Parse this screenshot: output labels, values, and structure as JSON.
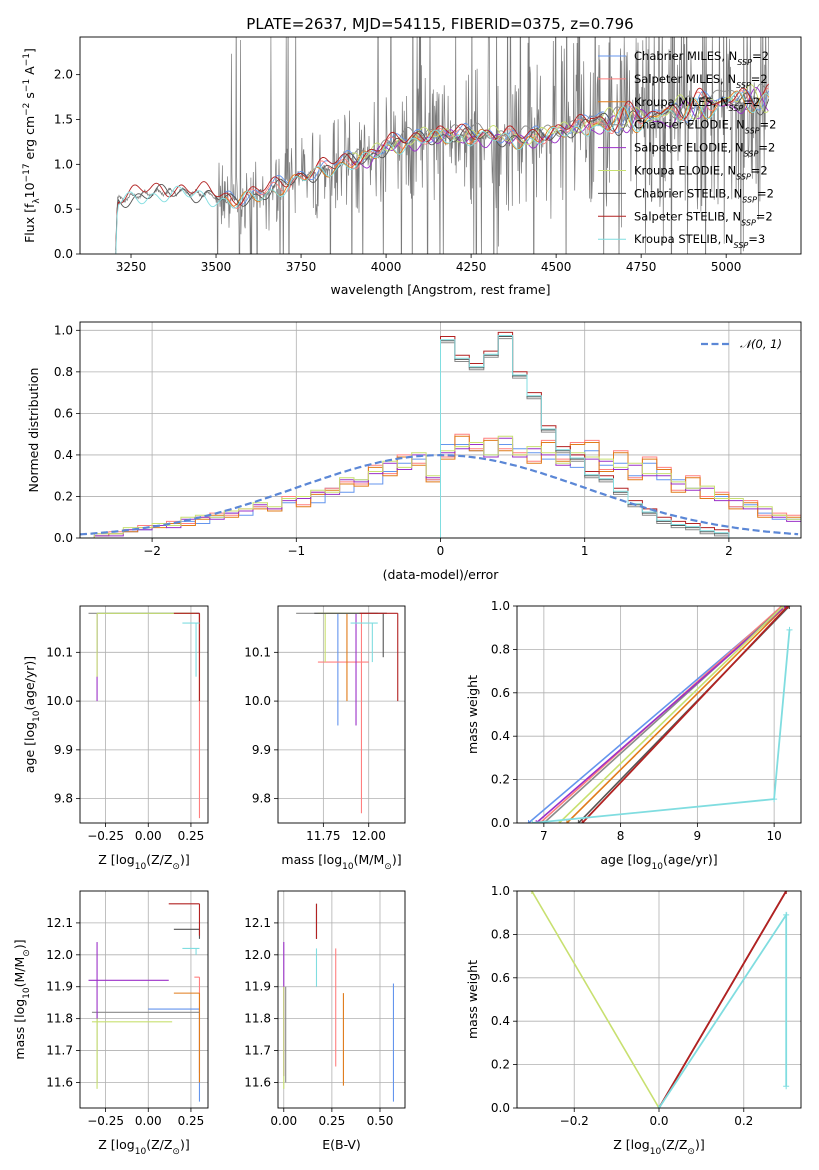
{
  "figure_title": "PLATE=2637, MJD=54115, FIBERID=0375, z=0.796",
  "colors": {
    "chabrier_miles": "#6495ED",
    "salpeter_miles": "#FF7F7F",
    "kroupa_miles": "#E07B1A",
    "chabrier_elodie": "#8A8A8A",
    "salpeter_elodie": "#9B30C8",
    "kroupa_elodie": "#C8E070",
    "chabrier_stelib": "#555555",
    "salpeter_stelib": "#B22222",
    "kroupa_stelib": "#80DDE0",
    "gauss": "#5B87D6",
    "data_spectrum": "#7a7a7a"
  },
  "chart_data": [
    {
      "id": "spectrum",
      "type": "line",
      "title": "PLATE=2637, MJD=54115, FIBERID=0375, z=0.796",
      "xlabel": "wavelength [Angstrom, rest frame]",
      "ylabel": "Flux [f$_\\lambda$ 10$^{-17}$ erg cm$^{-2}$ s$^{-1}$ A$^{-1}$]",
      "ylabel_parts": [
        "Flux [f",
        "λ",
        "10",
        "−17",
        " erg cm",
        "−2",
        " s",
        "−1",
        " A",
        "−1",
        "]"
      ],
      "xlim": [
        3100,
        5220
      ],
      "ylim": [
        0,
        2.42
      ],
      "xticks": [
        3250,
        3500,
        3750,
        4000,
        4250,
        4500,
        4750,
        5000
      ],
      "yticks": [
        0.0,
        0.5,
        1.0,
        1.5,
        2.0
      ],
      "ytick_labels": [
        "0.0",
        "0.5",
        "1.0",
        "1.5",
        "2.0"
      ],
      "grid": false,
      "legend_position": "upper right",
      "series": [
        {
          "name": "Chabrier MILES, N_SSP=2",
          "label_base": "Chabrier MILES, N",
          "label_sub": "SSP",
          "label_tail": "=2",
          "color_key": "chabrier_miles"
        },
        {
          "name": "Salpeter MILES, N_SSP=2",
          "label_base": "Salpeter MILES, N",
          "label_sub": "SSP",
          "label_tail": "=2",
          "color_key": "salpeter_miles"
        },
        {
          "name": "Kroupa MILES, N_SSP=2",
          "label_base": "Kroupa MILES, N",
          "label_sub": "SSP",
          "label_tail": "=2",
          "color_key": "kroupa_miles"
        },
        {
          "name": "Chabrier ELODIE, N_SSP=2",
          "label_base": "Chabrier ELODIE, N",
          "label_sub": "SSP",
          "label_tail": "=2",
          "color_key": "chabrier_elodie"
        },
        {
          "name": "Salpeter ELODIE, N_SSP=2",
          "label_base": "Salpeter ELODIE, N",
          "label_sub": "SSP",
          "label_tail": "=2",
          "color_key": "salpeter_elodie"
        },
        {
          "name": "Kroupa ELODIE, N_SSP=2",
          "label_base": "Kroupa ELODIE, N",
          "label_sub": "SSP",
          "label_tail": "=2",
          "color_key": "kroupa_elodie"
        },
        {
          "name": "Chabrier STELIB, N_SSP=2",
          "label_base": "Chabrier STELIB, N",
          "label_sub": "SSP",
          "label_tail": "=2",
          "color_key": "chabrier_stelib"
        },
        {
          "name": "Salpeter STELIB, N_SSP=2",
          "label_base": "Salpeter STELIB, N",
          "label_sub": "SSP",
          "label_tail": "=2",
          "color_key": "salpeter_stelib"
        },
        {
          "name": "Kroupa STELIB, N_SSP=3",
          "label_base": "Kroupa STELIB, N",
          "label_sub": "SSP",
          "label_tail": "=3",
          "color_key": "kroupa_stelib"
        }
      ],
      "model_range": {
        "miles": [
          3525,
          5125
        ],
        "elodie": [
          3900,
          5125
        ],
        "stelib": [
          3205,
          5125
        ]
      },
      "continuum_knots": [
        [
          3205,
          0.0
        ],
        [
          3210,
          0.6
        ],
        [
          3300,
          0.68
        ],
        [
          3400,
          0.7
        ],
        [
          3500,
          0.65
        ],
        [
          3550,
          0.58
        ],
        [
          3650,
          0.7
        ],
        [
          3750,
          0.85
        ],
        [
          3850,
          1.0
        ],
        [
          3950,
          1.08
        ],
        [
          4000,
          1.2
        ],
        [
          4100,
          1.3
        ],
        [
          4200,
          1.33
        ],
        [
          4300,
          1.32
        ],
        [
          4400,
          1.28
        ],
        [
          4500,
          1.35
        ],
        [
          4600,
          1.45
        ],
        [
          4700,
          1.5
        ],
        [
          4800,
          1.55
        ],
        [
          4900,
          1.62
        ],
        [
          5000,
          1.72
        ],
        [
          5125,
          1.72
        ]
      ],
      "data_range": [
        3205,
        5125
      ],
      "noise_start": 3500
    },
    {
      "id": "residuals",
      "type": "step",
      "xlabel": "(data-model)/error",
      "ylabel": "Normed distribution",
      "xlim": [
        -2.5,
        2.5
      ],
      "ylim": [
        0,
        1.04
      ],
      "xticks": [
        -2,
        -1,
        0,
        1,
        2
      ],
      "xtick_labels": [
        "−2",
        "−1",
        "0",
        "1",
        "2"
      ],
      "yticks": [
        0.0,
        0.2,
        0.4,
        0.6,
        0.8,
        1.0
      ],
      "ytick_labels": [
        "0.0",
        "0.2",
        "0.4",
        "0.6",
        "0.8",
        "1.0"
      ],
      "grid": true,
      "legend_position": "upper right",
      "legend_label": "𝒩(0, 1)",
      "bin_edges": [
        -2.5,
        -2.4,
        -2.3,
        -2.2,
        -2.1,
        -2.0,
        -1.9,
        -1.8,
        -1.7,
        -1.6,
        -1.5,
        -1.4,
        -1.3,
        -1.2,
        -1.1,
        -1.0,
        -0.9,
        -0.8,
        -0.7,
        -0.6,
        -0.5,
        -0.4,
        -0.3,
        -0.2,
        -0.1,
        0.0,
        0.1,
        0.2,
        0.3,
        0.4,
        0.5,
        0.6,
        0.7,
        0.8,
        0.9,
        1.0,
        1.1,
        1.2,
        1.3,
        1.4,
        1.5,
        1.6,
        1.7,
        1.8,
        1.9,
        2.0,
        2.1,
        2.2,
        2.3,
        2.4,
        2.5
      ],
      "histograms": {
        "narrow": [
          0,
          0,
          0,
          0,
          0,
          0,
          0,
          0,
          0,
          0,
          0,
          0,
          0,
          0,
          0,
          0,
          0,
          0,
          0,
          0,
          0,
          0,
          0,
          0,
          0,
          0.95,
          0.86,
          0.82,
          0.88,
          0.97,
          0.78,
          0.68,
          0.52,
          0.42,
          0.38,
          0.3,
          0.28,
          0.22,
          0.16,
          0.12,
          0.08,
          0.06,
          0.05,
          0.03,
          0.02,
          0.0,
          0.0,
          0.0,
          0.0,
          0.0
        ],
        "wide_a": [
          0.0,
          0.01,
          0.02,
          0.03,
          0.04,
          0.06,
          0.06,
          0.08,
          0.07,
          0.1,
          0.12,
          0.11,
          0.15,
          0.13,
          0.17,
          0.2,
          0.17,
          0.24,
          0.22,
          0.28,
          0.26,
          0.32,
          0.36,
          0.38,
          0.28,
          0.45,
          0.45,
          0.42,
          0.4,
          0.45,
          0.43,
          0.41,
          0.38,
          0.4,
          0.34,
          0.42,
          0.35,
          0.36,
          0.3,
          0.36,
          0.28,
          0.28,
          0.24,
          0.2,
          0.2,
          0.15,
          0.16,
          0.12,
          0.09,
          0.09
        ],
        "wide_b": [
          0.0,
          0.01,
          0.02,
          0.03,
          0.05,
          0.05,
          0.07,
          0.06,
          0.09,
          0.11,
          0.1,
          0.13,
          0.14,
          0.13,
          0.19,
          0.15,
          0.21,
          0.23,
          0.26,
          0.25,
          0.34,
          0.3,
          0.39,
          0.35,
          0.27,
          0.38,
          0.49,
          0.42,
          0.47,
          0.42,
          0.4,
          0.36,
          0.46,
          0.37,
          0.45,
          0.46,
          0.32,
          0.41,
          0.28,
          0.38,
          0.33,
          0.22,
          0.29,
          0.19,
          0.21,
          0.14,
          0.17,
          0.1,
          0.11,
          0.1
        ],
        "wide_c": [
          0.0,
          0.01,
          0.01,
          0.04,
          0.04,
          0.06,
          0.05,
          0.09,
          0.1,
          0.09,
          0.12,
          0.13,
          0.16,
          0.14,
          0.18,
          0.19,
          0.22,
          0.21,
          0.28,
          0.27,
          0.31,
          0.36,
          0.33,
          0.4,
          0.29,
          0.41,
          0.43,
          0.45,
          0.39,
          0.48,
          0.39,
          0.43,
          0.4,
          0.35,
          0.4,
          0.38,
          0.37,
          0.33,
          0.35,
          0.3,
          0.3,
          0.26,
          0.23,
          0.24,
          0.18,
          0.18,
          0.14,
          0.14,
          0.1,
          0.08
        ]
      }
    },
    {
      "id": "age_vs_Z",
      "type": "errorbar",
      "xlabel": "Z [log10(Z/Z⊙)]",
      "xlabel_parts": [
        "Z [log",
        "10",
        "(Z/Z",
        "⊙",
        ")]"
      ],
      "ylabel": "age [log10(age/yr)]",
      "ylabel_parts": [
        "age  [log",
        "10",
        "(age/yr)]"
      ],
      "xlim": [
        -0.4,
        0.35
      ],
      "ylim": [
        9.75,
        10.195
      ],
      "xticks": [
        -0.25,
        0.0,
        0.25
      ],
      "xtick_labels": [
        "−0.25",
        "0.00",
        "0.25"
      ],
      "yticks": [
        9.8,
        9.9,
        10.0,
        10.1
      ],
      "ytick_labels": [
        "9.8",
        "9.9",
        "10.0",
        "10.1"
      ],
      "grid": true
    },
    {
      "id": "age_vs_mass",
      "type": "errorbar",
      "xlabel": "mass [log10(M/M⊙)]",
      "xlabel_parts": [
        "mass [log",
        "10",
        "(M/M",
        "⊙",
        ")]"
      ],
      "xlim": [
        11.5,
        12.2
      ],
      "ylim": [
        9.75,
        10.195
      ],
      "xticks": [
        11.75,
        12.0
      ],
      "xtick_labels": [
        "11.75",
        "12.00"
      ],
      "yticks": [
        9.8,
        9.9,
        10.0,
        10.1
      ],
      "ytick_labels": [
        "9.8",
        "9.9",
        "10.0",
        "10.1"
      ],
      "grid": true
    },
    {
      "id": "massweight_vs_age",
      "type": "line",
      "xlabel": "age [log10(age/yr)]",
      "xlabel_parts": [
        "age  [log",
        "10",
        "(age/yr)]"
      ],
      "ylabel": "mass weight",
      "xlim": [
        6.65,
        10.35
      ],
      "ylim": [
        0,
        1.0
      ],
      "xticks": [
        7,
        8,
        9,
        10
      ],
      "xtick_labels": [
        "7",
        "8",
        "9",
        "10"
      ],
      "yticks": [
        0.0,
        0.2,
        0.4,
        0.6,
        0.8,
        1.0
      ],
      "ytick_labels": [
        "0.0",
        "0.2",
        "0.4",
        "0.6",
        "0.8",
        "1.0"
      ],
      "grid": true,
      "series": [
        {
          "color_key": "chabrier_miles",
          "x": [
            6.8,
            10.12
          ],
          "y": [
            0.0,
            1.0
          ]
        },
        {
          "color_key": "salpeter_miles",
          "x": [
            6.95,
            10.1
          ],
          "y": [
            0.0,
            1.0
          ]
        },
        {
          "color_key": "kroupa_miles",
          "x": [
            7.3,
            10.15
          ],
          "y": [
            0.0,
            1.0
          ]
        },
        {
          "color_key": "chabrier_elodie",
          "x": [
            7.0,
            10.12
          ],
          "y": [
            0.0,
            1.0
          ]
        },
        {
          "color_key": "salpeter_elodie",
          "x": [
            6.9,
            10.15
          ],
          "y": [
            0.0,
            1.0
          ]
        },
        {
          "color_key": "kroupa_elodie",
          "x": [
            7.2,
            10.12
          ],
          "y": [
            0.0,
            1.0
          ]
        },
        {
          "color_key": "chabrier_stelib",
          "x": [
            7.45,
            10.2
          ],
          "y": [
            0.0,
            1.0
          ]
        },
        {
          "color_key": "salpeter_stelib",
          "x": [
            7.5,
            10.18
          ],
          "y": [
            0.0,
            1.0
          ]
        },
        {
          "color_key": "kroupa_stelib",
          "x": [
            6.85,
            10.0,
            10.2
          ],
          "y": [
            0.0,
            0.11,
            0.89
          ]
        }
      ]
    },
    {
      "id": "mass_vs_Z",
      "type": "errorbar",
      "xlabel": "Z [log10(Z/Z⊙)]",
      "xlabel_parts": [
        "Z [log",
        "10",
        "(Z/Z",
        "⊙",
        ")]"
      ],
      "ylabel": "mass [log10(M/M⊙)]",
      "ylabel_parts": [
        "mass [log",
        "10",
        "(M/M",
        "⊙",
        ")]"
      ],
      "xlim": [
        -0.4,
        0.35
      ],
      "ylim": [
        11.52,
        12.2
      ],
      "xticks": [
        -0.25,
        0.0,
        0.25
      ],
      "xtick_labels": [
        "−0.25",
        "0.00",
        "0.25"
      ],
      "yticks": [
        11.6,
        11.7,
        11.8,
        11.9,
        12.0,
        12.1
      ],
      "ytick_labels": [
        "11.6",
        "11.7",
        "11.8",
        "11.9",
        "12.0",
        "12.1"
      ],
      "grid": true
    },
    {
      "id": "mass_vs_ebv",
      "type": "errorbar",
      "xlabel": "E(B-V)",
      "xlim": [
        -0.03,
        0.63
      ],
      "ylim": [
        11.52,
        12.2
      ],
      "xticks": [
        0.0,
        0.25,
        0.5
      ],
      "xtick_labels": [
        "0.00",
        "0.25",
        "0.50"
      ],
      "yticks": [
        11.6,
        11.7,
        11.8,
        11.9,
        12.0,
        12.1
      ],
      "ytick_labels": [
        "11.6",
        "11.7",
        "11.8",
        "11.9",
        "12.0",
        "12.1"
      ],
      "grid": true
    },
    {
      "id": "massweight_vs_Z",
      "type": "line",
      "xlabel": "Z [log10(Z/Z⊙)]",
      "xlabel_parts": [
        "Z [log",
        "10",
        "(Z/Z",
        "⊙",
        ")]"
      ],
      "ylabel": "mass weight",
      "xlim": [
        -0.335,
        0.335
      ],
      "ylim": [
        0,
        1.0
      ],
      "xticks": [
        -0.2,
        0.0,
        0.2
      ],
      "xtick_labels": [
        "−0.2",
        "0.0",
        "0.2"
      ],
      "yticks": [
        0.0,
        0.2,
        0.4,
        0.6,
        0.8,
        1.0
      ],
      "ytick_labels": [
        "0.0",
        "0.2",
        "0.4",
        "0.6",
        "0.8",
        "1.0"
      ],
      "grid": true,
      "series": [
        {
          "color_key": "kroupa_elodie",
          "x": [
            -0.3,
            0.0
          ],
          "y": [
            1.0,
            0.0
          ]
        },
        {
          "color_key": "salpeter_miles",
          "x": [
            0.0,
            0.3
          ],
          "y": [
            0.0,
            1.0
          ]
        },
        {
          "color_key": "chabrier_stelib",
          "x": [
            0.0,
            0.3
          ],
          "y": [
            0.0,
            1.0
          ]
        },
        {
          "color_key": "salpeter_stelib",
          "x": [
            0.0,
            0.3
          ],
          "y": [
            0.0,
            1.0
          ]
        },
        {
          "color_key": "kroupa_stelib",
          "x": [
            0.0,
            0.3,
            0.3
          ],
          "y": [
            0.0,
            0.89,
            0.1
          ]
        }
      ]
    }
  ]
}
